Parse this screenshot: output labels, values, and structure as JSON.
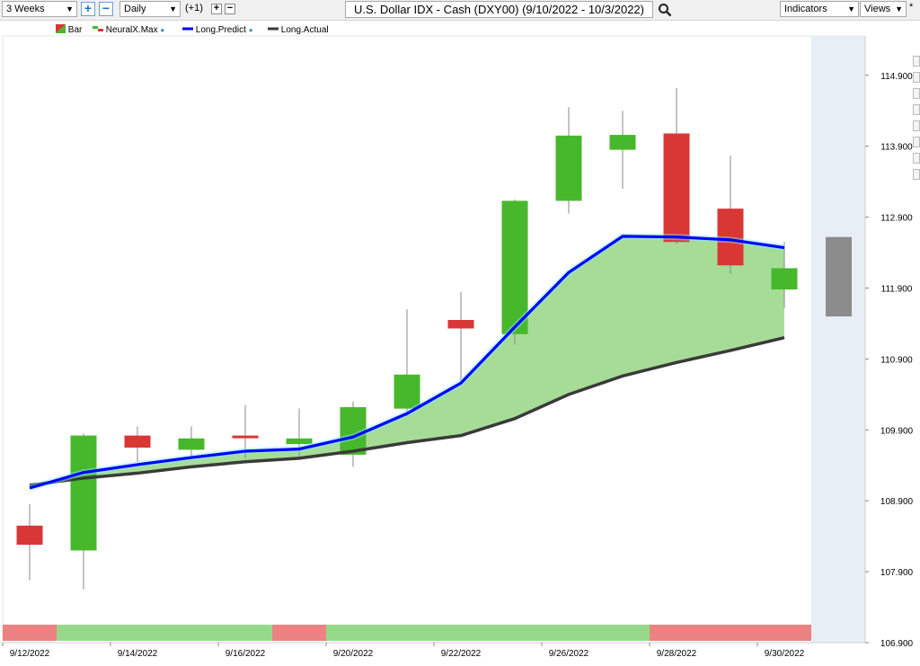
{
  "toolbar": {
    "range_label": "3 Weeks",
    "zoom_in_label": "+",
    "zoom_out_label": "−",
    "interval_label": "Daily",
    "offset_label": "(+1)",
    "step_plus_label": "+",
    "step_minus_label": "−",
    "title": "U.S. Dollar IDX - Cash (DXY00) (9/10/2022 - 10/3/2022)",
    "indicators_label": "Indicators",
    "views_label": "Views",
    "views_star": "*",
    "icons": {
      "search": "search-icon",
      "dropdown": "chevron-down-icon"
    }
  },
  "legend": {
    "items": [
      {
        "label": "Bar",
        "icon": "bar-icon"
      },
      {
        "label": "NeuralX.Max",
        "icon": "neuralx-icon"
      },
      {
        "label": "Long.Predict",
        "icon": "line-icon",
        "color": "#0000ff"
      },
      {
        "label": "Long.Actual",
        "icon": "line-icon",
        "color": "#3a3a3a"
      }
    ]
  },
  "chart_data": {
    "type": "candlestick",
    "y_ticks": [
      "114.900",
      "113.900",
      "112.900",
      "111.900",
      "110.900",
      "109.900",
      "108.900",
      "107.900",
      "106.900"
    ],
    "y_tick_values": [
      114.9,
      113.9,
      112.9,
      111.9,
      110.9,
      109.9,
      108.9,
      107.9,
      106.9
    ],
    "ylim": [
      106.9,
      115.3
    ],
    "x_tick_labels": [
      "9/12/2022",
      "9/14/2022",
      "9/16/2022",
      "9/20/2022",
      "9/22/2022",
      "9/26/2022",
      "9/28/2022",
      "9/30/2022"
    ],
    "x_tick_index": [
      0,
      2,
      4,
      6,
      8,
      10,
      12,
      14
    ],
    "candles": [
      {
        "open": 108.55,
        "high": 108.85,
        "low": 107.78,
        "close": 108.28
      },
      {
        "open": 108.2,
        "high": 109.85,
        "low": 107.65,
        "close": 109.82
      },
      {
        "open": 109.82,
        "high": 109.95,
        "low": 109.45,
        "close": 109.65
      },
      {
        "open": 109.62,
        "high": 109.95,
        "low": 109.5,
        "close": 109.78
      },
      {
        "open": 109.82,
        "high": 110.25,
        "low": 109.5,
        "close": 109.79
      },
      {
        "open": 109.7,
        "high": 110.2,
        "low": 109.5,
        "close": 109.78
      },
      {
        "open": 109.55,
        "high": 110.3,
        "low": 109.38,
        "close": 110.22
      },
      {
        "open": 110.2,
        "high": 111.6,
        "low": 110.1,
        "close": 110.68
      },
      {
        "open": 111.45,
        "high": 111.85,
        "low": 110.55,
        "close": 111.33
      },
      {
        "open": 111.25,
        "high": 113.15,
        "low": 111.1,
        "close": 113.13
      },
      {
        "open": 113.13,
        "high": 114.45,
        "low": 112.95,
        "close": 114.05
      },
      {
        "open": 113.85,
        "high": 114.4,
        "low": 113.3,
        "close": 114.06
      },
      {
        "open": 114.08,
        "high": 114.72,
        "low": 112.52,
        "close": 112.55
      },
      {
        "open": 113.02,
        "high": 113.77,
        "low": 112.1,
        "close": 112.22
      },
      {
        "open": 111.88,
        "high": 112.55,
        "low": 111.62,
        "close": 112.18
      }
    ],
    "long_predict": [
      109.08,
      109.3,
      109.41,
      109.51,
      109.6,
      109.63,
      109.8,
      110.13,
      110.56,
      111.35,
      112.12,
      112.63,
      112.62,
      112.58,
      112.47
    ],
    "long_actual": [
      109.12,
      109.22,
      109.29,
      109.38,
      109.45,
      109.5,
      109.6,
      109.72,
      109.82,
      110.06,
      110.4,
      110.66,
      110.85,
      111.02,
      111.2
    ],
    "future_projection": {
      "high": 112.62,
      "low": 111.5
    },
    "signal_bar": [
      {
        "from": 0,
        "to": 1,
        "state": "down"
      },
      {
        "from": 1,
        "to": 5,
        "state": "up"
      },
      {
        "from": 5,
        "to": 6,
        "state": "down"
      },
      {
        "from": 6,
        "to": 12,
        "state": "up"
      },
      {
        "from": 12,
        "to": 15,
        "state": "down"
      }
    ],
    "colors": {
      "up": "#47b82c",
      "down": "#d93636",
      "predict": "#0000ff",
      "actual": "#3a3a3a",
      "fill": "#a7dc97",
      "signal_up": "#97d98a",
      "signal_down": "#ec8282",
      "projection": "#8c8c8c",
      "projection_bg": "#e8eef6"
    },
    "grid": false,
    "legend_position": "top-left"
  }
}
